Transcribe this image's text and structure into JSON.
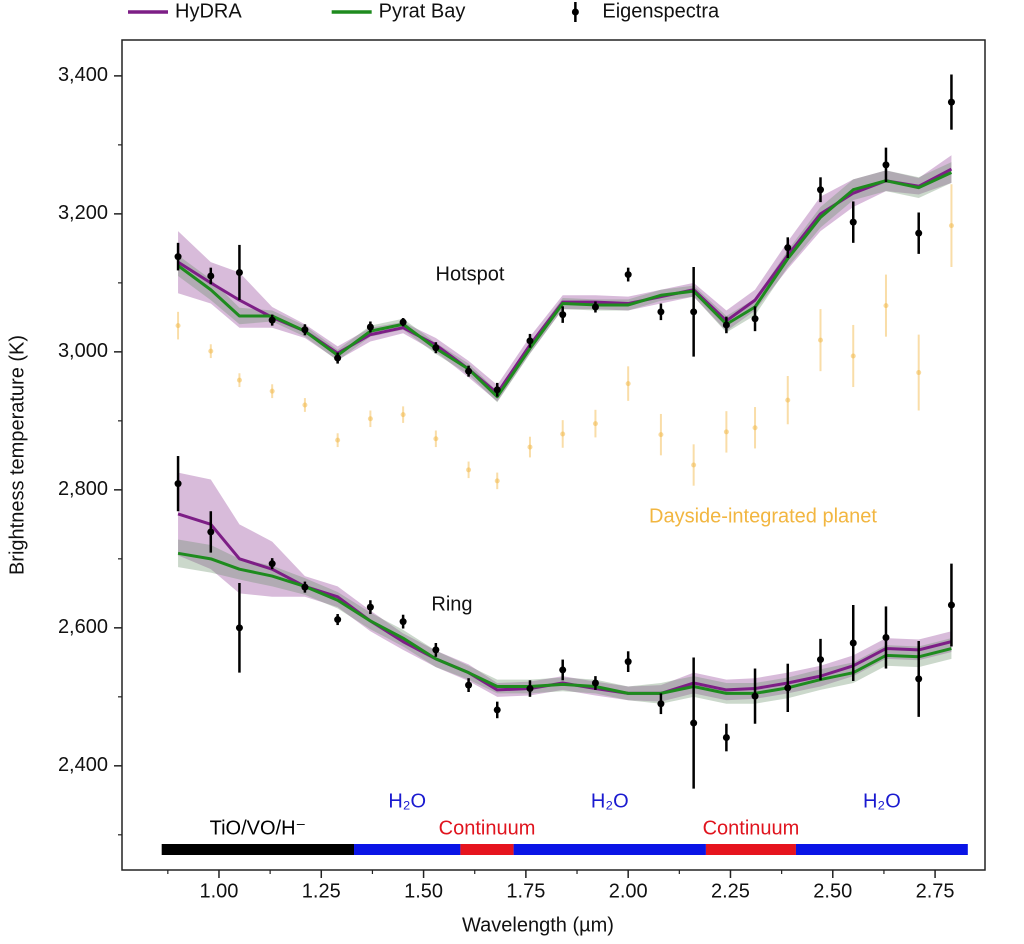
{
  "chart_data": {
    "type": "line",
    "xlabel": "Wavelength (µm)",
    "ylabel": "Brightness temperature (K)",
    "xlim": [
      0.763,
      2.872
    ],
    "ylim": [
      2249,
      3452
    ],
    "xticks": [
      {
        "value": 1,
        "label": "1.00"
      },
      1.25,
      {
        "value": 1.5,
        "label": "1.50"
      },
      1.75,
      {
        "value": 2,
        "label": "2.00"
      },
      2.25,
      {
        "value": 2.5,
        "label": "2.50"
      },
      2.75
    ],
    "xminor_ticks": [
      0.875,
      1.125,
      1.375,
      1.625,
      1.875,
      2.125,
      2.375,
      2.625
    ],
    "yticks": [
      {
        "value": 2400,
        "label": "2,400"
      },
      {
        "value": 2600,
        "label": "2,600"
      },
      {
        "value": 2800,
        "label": "2,800"
      },
      {
        "value": 3000,
        "label": "3,000"
      },
      {
        "value": 3200,
        "label": "3,200"
      },
      {
        "value": 3400,
        "label": "3,400"
      }
    ],
    "yminor_ticks": [
      2300,
      2500,
      2700,
      2900,
      3100,
      3300
    ],
    "annotations": [
      "Hotspot",
      "Ring"
    ],
    "x": [
      0.9,
      0.98,
      1.05,
      1.13,
      1.21,
      1.29,
      1.37,
      1.45,
      1.53,
      1.61,
      1.68,
      1.76,
      1.84,
      1.92,
      2.0,
      2.08,
      2.16,
      2.24,
      2.31,
      2.39,
      2.47,
      2.55,
      2.63,
      2.71,
      2.79
    ],
    "series": [
      {
        "name": "HyDRA",
        "color": "#7d1e86",
        "kind": "line",
        "groups": [
          {
            "values": [
              3130,
              3100,
              3075,
              3050,
              3030,
              2998,
              3025,
              3035,
              3010,
              2975,
              2940,
              3010,
              3072,
              3072,
              3070,
              3080,
              3090,
              3045,
              3075,
              3140,
              3200,
              3230,
              3248,
              3240,
              3265
            ],
            "errors": [
              45,
              30,
              40,
              15,
              10,
              10,
              10,
              8,
              10,
              12,
              12,
              12,
              10,
              10,
              10,
              10,
              10,
              15,
              15,
              20,
              25,
              20,
              15,
              12,
              20
            ]
          },
          {
            "values": [
              2765,
              2750,
              2700,
              2685,
              2660,
              2645,
              2610,
              2580,
              2555,
              2535,
              2510,
              2512,
              2520,
              2512,
              2505,
              2505,
              2520,
              2510,
              2512,
              2520,
              2530,
              2545,
              2570,
              2568,
              2580
            ],
            "errors": [
              60,
              65,
              50,
              40,
              15,
              15,
              15,
              12,
              12,
              12,
              10,
              10,
              10,
              10,
              10,
              12,
              15,
              15,
              15,
              15,
              15,
              15,
              15,
              15,
              15
            ]
          }
        ]
      },
      {
        "name": "Pyrat Bay",
        "color": "#1e8b1e",
        "kind": "line",
        "groups": [
          {
            "values": [
              3125,
              3090,
              3052,
              3052,
              3030,
              2995,
              3030,
              3040,
              3005,
              2975,
              2935,
              3005,
              3070,
              3068,
              3068,
              3082,
              3088,
              3040,
              3065,
              3135,
              3195,
              3235,
              3248,
              3238,
              3260
            ],
            "errors": [
              15,
              15,
              12,
              8,
              8,
              8,
              8,
              8,
              8,
              8,
              8,
              8,
              8,
              8,
              8,
              8,
              8,
              12,
              12,
              12,
              15,
              15,
              15,
              15,
              15
            ]
          },
          {
            "values": [
              2708,
              2700,
              2685,
              2675,
              2660,
              2640,
              2610,
              2585,
              2555,
              2535,
              2515,
              2515,
              2518,
              2515,
              2505,
              2505,
              2515,
              2505,
              2505,
              2513,
              2525,
              2535,
              2560,
              2558,
              2570
            ],
            "errors": [
              20,
              20,
              15,
              15,
              12,
              12,
              12,
              12,
              12,
              10,
              10,
              10,
              10,
              10,
              10,
              15,
              15,
              15,
              15,
              15,
              15,
              15,
              15,
              15,
              15
            ]
          }
        ]
      },
      {
        "name": "Eigenspectra",
        "color": "#000000",
        "kind": "errorbar",
        "groups": [
          {
            "values": [
              3138,
              3110,
              3115,
              3046,
              3032,
              2991,
              3036,
              3043,
              3006,
              2972,
              2945,
              3016,
              3054,
              3065,
              3112,
              3058,
              3058,
              3039,
              3048,
              3151,
              3235,
              3188,
              3271,
              3172,
              3362
            ],
            "errors": [
              20,
              12,
              40,
              8,
              8,
              8,
              8,
              6,
              8,
              8,
              10,
              10,
              12,
              8,
              10,
              12,
              65,
              12,
              18,
              15,
              18,
              30,
              25,
              30,
              40
            ]
          },
          {
            "values": [
              2809,
              2739,
              2600,
              2693,
              2659,
              2612,
              2630,
              2609,
              2568,
              2517,
              2481,
              2512,
              2539,
              2520,
              2551,
              2490,
              2462,
              2441,
              2501,
              2513,
              2554,
              2578,
              2586,
              2526,
              2633
            ],
            "errors": [
              40,
              30,
              65,
              8,
              8,
              8,
              10,
              10,
              10,
              10,
              12,
              12,
              15,
              10,
              15,
              15,
              95,
              20,
              40,
              35,
              30,
              55,
              45,
              55,
              60
            ]
          }
        ]
      }
    ],
    "dayside": {
      "label": "Dayside-integrated planet",
      "color": "#f2b640",
      "values": [
        3038,
        3001,
        2959,
        2943,
        2923,
        2872,
        2903,
        2909,
        2874,
        2829,
        2813,
        2862,
        2881,
        2896,
        2954,
        2880,
        2836,
        2884,
        2890,
        2930,
        3017,
        2994,
        3067,
        2970,
        3183
      ],
      "errors": [
        20,
        10,
        10,
        10,
        10,
        10,
        12,
        12,
        12,
        12,
        12,
        15,
        20,
        20,
        25,
        30,
        30,
        30,
        30,
        35,
        45,
        45,
        45,
        55,
        60
      ]
    },
    "bands": [
      {
        "start": 0.86,
        "end": 1.33,
        "color": "#000000",
        "label": "TiO/VO/H⁻",
        "label_color": "#000000"
      },
      {
        "start": 1.33,
        "end": 1.59,
        "color": "#0a14e6",
        "label": "H₂O",
        "label_color": "#1a1ad0"
      },
      {
        "start": 1.59,
        "end": 1.72,
        "color": "#e6141e",
        "label": "Continuum",
        "label_color": "#e0141e"
      },
      {
        "start": 1.72,
        "end": 2.19,
        "color": "#0a14e6",
        "label": "H₂O",
        "label_color": "#1a1ad0"
      },
      {
        "start": 2.19,
        "end": 2.41,
        "color": "#e6141e",
        "label": "Continuum",
        "label_color": "#e0141e"
      },
      {
        "start": 2.41,
        "end": 2.83,
        "color": "#0a14e6",
        "label": "H₂O",
        "label_color": "#1a1ad0"
      }
    ]
  }
}
